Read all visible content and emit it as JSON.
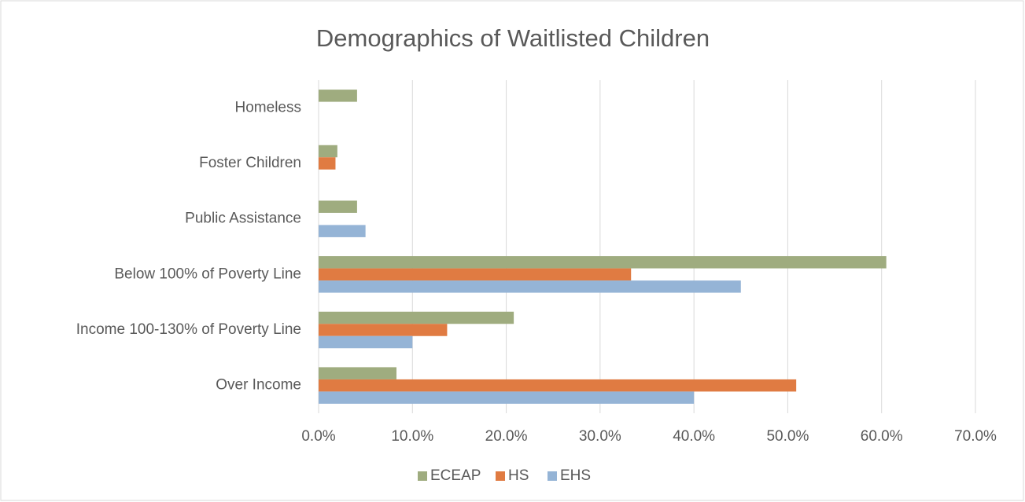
{
  "chart_data": {
    "type": "hbar",
    "title": "Demographics of Waitlisted Children",
    "categories": [
      "Homeless",
      "Foster Children",
      "Public Assistance",
      "Below 100% of Poverty Line",
      "Income 100-130% of Poverty Line",
      "Over Income"
    ],
    "series": [
      {
        "name": "ECEAP",
        "color": "#9fac7f",
        "values": [
          4.1,
          2.0,
          4.1,
          60.5,
          20.8,
          8.3
        ]
      },
      {
        "name": "HS",
        "color": "#e07b42",
        "values": [
          0,
          1.8,
          0,
          33.3,
          13.7,
          50.9
        ]
      },
      {
        "name": "EHS",
        "color": "#95b4d6",
        "values": [
          0,
          0,
          5.0,
          45.0,
          10.0,
          40.0
        ]
      }
    ],
    "xlim": [
      0,
      70
    ],
    "xticks": [
      {
        "value": 0,
        "label": "0.0%"
      },
      {
        "value": 10,
        "label": "10.0%"
      },
      {
        "value": 20,
        "label": "20.0%"
      },
      {
        "value": 30,
        "label": "30.0%"
      },
      {
        "value": 40,
        "label": "40.0%"
      },
      {
        "value": 50,
        "label": "50.0%"
      },
      {
        "value": 60,
        "label": "60.0%"
      },
      {
        "value": 70,
        "label": "70.0%"
      }
    ],
    "grid": true,
    "legend": "bottom"
  }
}
